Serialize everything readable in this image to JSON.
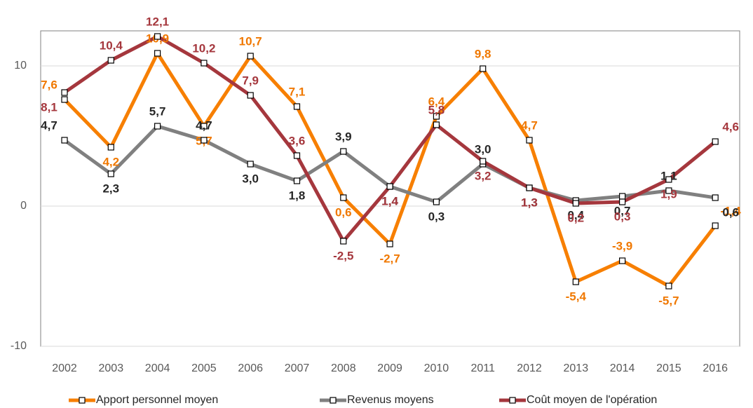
{
  "chart_data": {
    "type": "line",
    "categories": [
      "2002",
      "2003",
      "2004",
      "2005",
      "2006",
      "2007",
      "2008",
      "2009",
      "2010",
      "2011",
      "2012",
      "2013",
      "2014",
      "2015",
      "2016"
    ],
    "ylim": [
      -10,
      12.5
    ],
    "yticks": [
      -10,
      0,
      10
    ],
    "grid": true,
    "series": [
      {
        "name": "Apport personnel moyen",
        "color": "#f77f00",
        "label_color": "#f07800",
        "values": [
          7.6,
          4.2,
          10.9,
          5.7,
          10.7,
          7.1,
          0.6,
          -2.7,
          6.4,
          9.8,
          4.7,
          -5.4,
          -3.9,
          -5.7,
          -1.4
        ],
        "value_labels": [
          "7,6",
          "4,2",
          "10,9",
          "5,7",
          "10,7",
          "7,1",
          "0,6",
          "-2,7",
          "6,4",
          "9,8",
          "4,7",
          "-5,4",
          "-3,9",
          "-5,7",
          "-1,4"
        ]
      },
      {
        "name": "Revenus moyens",
        "color": "#808080",
        "label_color": "#262626",
        "values": [
          4.7,
          2.3,
          5.7,
          4.7,
          3.0,
          1.8,
          3.9,
          1.4,
          0.3,
          3.0,
          1.3,
          0.4,
          0.7,
          1.1,
          0.6
        ],
        "value_labels": [
          "4,7",
          "2,3",
          "5,7",
          "4,7",
          "3,0",
          "1,8",
          "3,9",
          "1,4",
          "0,3",
          "3,0",
          "1,3",
          "0,4",
          "0,7",
          "1,1",
          "0,6"
        ]
      },
      {
        "name": "Coût moyen de l'opération",
        "color": "#a5373d",
        "label_color": "#a5373d",
        "values": [
          8.1,
          10.4,
          12.1,
          10.2,
          7.9,
          3.6,
          -2.5,
          1.4,
          5.8,
          3.2,
          1.3,
          0.2,
          0.3,
          1.9,
          4.6
        ],
        "value_labels": [
          "8,1",
          "10,4",
          "12,1",
          "10,2",
          "7,9",
          "3,6",
          "-2,5",
          "1,4",
          "5,8",
          "3,2",
          "1,3",
          "0,2",
          "0,3",
          "1,9",
          "4,6"
        ]
      }
    ]
  }
}
